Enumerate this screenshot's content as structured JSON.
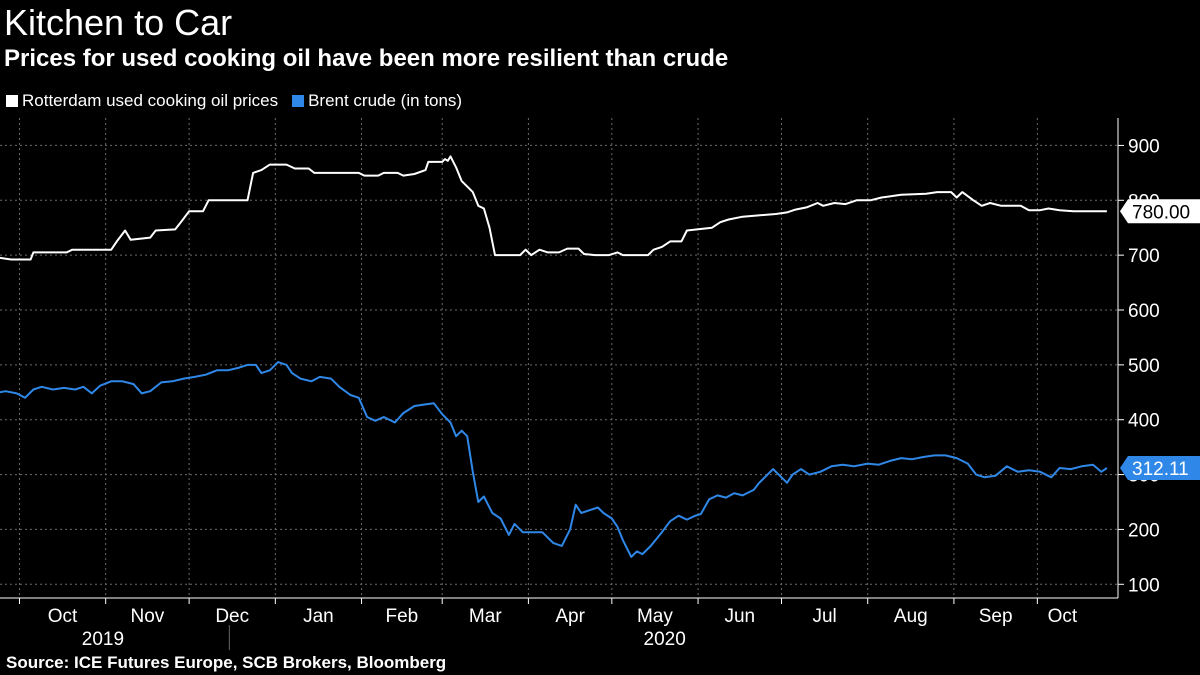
{
  "chart_data": {
    "type": "line",
    "title": "Kitchen to Car",
    "subtitle": "Prices for used cooking oil have been more resilient than crude",
    "source": "Source: ICE Futures Europe, SCB Brokers, Bloomberg",
    "ylim": [
      75,
      950
    ],
    "yticks": [
      100,
      200,
      300,
      400,
      500,
      600,
      700,
      800,
      900
    ],
    "grid": true,
    "legend_position": "top-left",
    "month_ticks": [
      {
        "label": "Oct",
        "date": "2019-10-01"
      },
      {
        "label": "Nov",
        "date": "2019-11-01"
      },
      {
        "label": "Dec",
        "date": "2019-12-01"
      },
      {
        "label": "Jan",
        "date": "2020-01-01"
      },
      {
        "label": "Feb",
        "date": "2020-02-01"
      },
      {
        "label": "Mar",
        "date": "2020-03-01"
      },
      {
        "label": "Apr",
        "date": "2020-04-01"
      },
      {
        "label": "May",
        "date": "2020-05-01"
      },
      {
        "label": "Jun",
        "date": "2020-06-01"
      },
      {
        "label": "Jul",
        "date": "2020-07-01"
      },
      {
        "label": "Aug",
        "date": "2020-08-01"
      },
      {
        "label": "Sep",
        "date": "2020-09-01"
      },
      {
        "label": "Oct",
        "date": "2020-10-01"
      }
    ],
    "year_labels": [
      {
        "label": "2019",
        "date": "2019-10-31"
      },
      {
        "label": "2020",
        "date": "2020-05-20"
      }
    ],
    "series": [
      {
        "name": "Rotterdam used cooking oil prices",
        "color": "#ffffff",
        "last_value_label": "780.00",
        "points": [
          [
            "2019-09-24",
            695
          ],
          [
            "2019-09-28",
            692
          ],
          [
            "2019-10-05",
            692
          ],
          [
            "2019-10-06",
            705
          ],
          [
            "2019-10-18",
            705
          ],
          [
            "2019-10-20",
            710
          ],
          [
            "2019-11-03",
            710
          ],
          [
            "2019-11-05",
            725
          ],
          [
            "2019-11-08",
            745
          ],
          [
            "2019-11-10",
            728
          ],
          [
            "2019-11-17",
            732
          ],
          [
            "2019-11-19",
            745
          ],
          [
            "2019-11-26",
            747
          ],
          [
            "2019-11-28",
            760
          ],
          [
            "2019-12-01",
            780
          ],
          [
            "2019-12-06",
            780
          ],
          [
            "2019-12-08",
            800
          ],
          [
            "2019-12-22",
            800
          ],
          [
            "2019-12-24",
            850
          ],
          [
            "2019-12-27",
            855
          ],
          [
            "2019-12-30",
            865
          ],
          [
            "2020-01-05",
            865
          ],
          [
            "2020-01-08",
            858
          ],
          [
            "2020-01-13",
            858
          ],
          [
            "2020-01-15",
            850
          ],
          [
            "2020-01-31",
            850
          ],
          [
            "2020-02-02",
            845
          ],
          [
            "2020-02-07",
            845
          ],
          [
            "2020-02-09",
            850
          ],
          [
            "2020-02-14",
            850
          ],
          [
            "2020-02-16",
            845
          ],
          [
            "2020-02-20",
            848
          ],
          [
            "2020-02-24",
            855
          ],
          [
            "2020-02-25",
            870
          ],
          [
            "2020-03-01",
            870
          ],
          [
            "2020-03-02",
            875
          ],
          [
            "2020-03-03",
            872
          ],
          [
            "2020-03-04",
            880
          ],
          [
            "2020-03-06",
            860
          ],
          [
            "2020-03-08",
            835
          ],
          [
            "2020-03-12",
            815
          ],
          [
            "2020-03-14",
            790
          ],
          [
            "2020-03-16",
            785
          ],
          [
            "2020-03-18",
            750
          ],
          [
            "2020-03-20",
            700
          ],
          [
            "2020-03-29",
            700
          ],
          [
            "2020-03-31",
            710
          ],
          [
            "2020-04-02",
            700
          ],
          [
            "2020-04-05",
            710
          ],
          [
            "2020-04-08",
            705
          ],
          [
            "2020-04-12",
            705
          ],
          [
            "2020-04-15",
            712
          ],
          [
            "2020-04-19",
            712
          ],
          [
            "2020-04-21",
            702
          ],
          [
            "2020-04-25",
            700
          ],
          [
            "2020-04-30",
            700
          ],
          [
            "2020-05-03",
            705
          ],
          [
            "2020-05-05",
            700
          ],
          [
            "2020-05-14",
            700
          ],
          [
            "2020-05-16",
            710
          ],
          [
            "2020-05-19",
            715
          ],
          [
            "2020-05-22",
            725
          ],
          [
            "2020-05-26",
            725
          ],
          [
            "2020-05-28",
            745
          ],
          [
            "2020-06-06",
            750
          ],
          [
            "2020-06-09",
            760
          ],
          [
            "2020-06-12",
            765
          ],
          [
            "2020-06-17",
            770
          ],
          [
            "2020-06-29",
            775
          ],
          [
            "2020-07-03",
            778
          ],
          [
            "2020-07-06",
            783
          ],
          [
            "2020-07-10",
            787
          ],
          [
            "2020-07-14",
            795
          ],
          [
            "2020-07-16",
            790
          ],
          [
            "2020-07-20",
            795
          ],
          [
            "2020-07-24",
            793
          ],
          [
            "2020-07-28",
            800
          ],
          [
            "2020-08-02",
            800
          ],
          [
            "2020-08-06",
            805
          ],
          [
            "2020-08-13",
            810
          ],
          [
            "2020-08-22",
            812
          ],
          [
            "2020-08-26",
            815
          ],
          [
            "2020-08-31",
            815
          ],
          [
            "2020-09-02",
            805
          ],
          [
            "2020-09-04",
            815
          ],
          [
            "2020-09-08",
            800
          ],
          [
            "2020-09-11",
            790
          ],
          [
            "2020-09-14",
            795
          ],
          [
            "2020-09-18",
            790
          ],
          [
            "2020-09-25",
            790
          ],
          [
            "2020-09-28",
            782
          ],
          [
            "2020-10-02",
            782
          ],
          [
            "2020-10-05",
            785
          ],
          [
            "2020-10-09",
            782
          ],
          [
            "2020-10-14",
            780
          ],
          [
            "2020-10-26",
            780
          ]
        ]
      },
      {
        "name": "Brent crude (in tons)",
        "color": "#2f88e8",
        "last_value_label": "312.11",
        "points": [
          [
            "2019-09-24",
            450
          ],
          [
            "2019-09-26",
            452
          ],
          [
            "2019-09-30",
            448
          ],
          [
            "2019-10-03",
            440
          ],
          [
            "2019-10-06",
            455
          ],
          [
            "2019-10-09",
            460
          ],
          [
            "2019-10-13",
            455
          ],
          [
            "2019-10-17",
            458
          ],
          [
            "2019-10-21",
            455
          ],
          [
            "2019-10-24",
            460
          ],
          [
            "2019-10-27",
            448
          ],
          [
            "2019-10-30",
            462
          ],
          [
            "2019-11-03",
            470
          ],
          [
            "2019-11-07",
            470
          ],
          [
            "2019-11-11",
            465
          ],
          [
            "2019-11-14",
            448
          ],
          [
            "2019-11-17",
            452
          ],
          [
            "2019-11-21",
            468
          ],
          [
            "2019-11-25",
            470
          ],
          [
            "2019-11-29",
            475
          ],
          [
            "2019-12-03",
            478
          ],
          [
            "2019-12-07",
            482
          ],
          [
            "2019-12-11",
            490
          ],
          [
            "2019-12-15",
            490
          ],
          [
            "2019-12-19",
            495
          ],
          [
            "2019-12-22",
            500
          ],
          [
            "2019-12-25",
            500
          ],
          [
            "2019-12-27",
            485
          ],
          [
            "2019-12-30",
            490
          ],
          [
            "2020-01-02",
            505
          ],
          [
            "2020-01-05",
            500
          ],
          [
            "2020-01-07",
            485
          ],
          [
            "2020-01-10",
            475
          ],
          [
            "2020-01-14",
            470
          ],
          [
            "2020-01-17",
            478
          ],
          [
            "2020-01-21",
            475
          ],
          [
            "2020-01-24",
            460
          ],
          [
            "2020-01-28",
            445
          ],
          [
            "2020-01-31",
            440
          ],
          [
            "2020-02-03",
            405
          ],
          [
            "2020-02-06",
            398
          ],
          [
            "2020-02-09",
            405
          ],
          [
            "2020-02-13",
            395
          ],
          [
            "2020-02-16",
            412
          ],
          [
            "2020-02-20",
            425
          ],
          [
            "2020-02-24",
            428
          ],
          [
            "2020-02-27",
            430
          ],
          [
            "2020-03-01",
            410
          ],
          [
            "2020-03-04",
            395
          ],
          [
            "2020-03-06",
            370
          ],
          [
            "2020-03-08",
            380
          ],
          [
            "2020-03-10",
            370
          ],
          [
            "2020-03-12",
            305
          ],
          [
            "2020-03-14",
            250
          ],
          [
            "2020-03-16",
            260
          ],
          [
            "2020-03-19",
            230
          ],
          [
            "2020-03-22",
            220
          ],
          [
            "2020-03-25",
            190
          ],
          [
            "2020-03-27",
            210
          ],
          [
            "2020-03-30",
            195
          ],
          [
            "2020-04-03",
            195
          ],
          [
            "2020-04-06",
            195
          ],
          [
            "2020-04-10",
            175
          ],
          [
            "2020-04-13",
            170
          ],
          [
            "2020-04-16",
            200
          ],
          [
            "2020-04-18",
            245
          ],
          [
            "2020-04-20",
            230
          ],
          [
            "2020-04-23",
            235
          ],
          [
            "2020-04-26",
            240
          ],
          [
            "2020-04-28",
            230
          ],
          [
            "2020-05-01",
            220
          ],
          [
            "2020-05-03",
            205
          ],
          [
            "2020-05-05",
            180
          ],
          [
            "2020-05-08",
            150
          ],
          [
            "2020-05-10",
            160
          ],
          [
            "2020-05-12",
            155
          ],
          [
            "2020-05-15",
            170
          ],
          [
            "2020-05-19",
            195
          ],
          [
            "2020-05-22",
            215
          ],
          [
            "2020-05-25",
            225
          ],
          [
            "2020-05-28",
            218
          ],
          [
            "2020-05-31",
            225
          ],
          [
            "2020-06-02",
            228
          ],
          [
            "2020-06-05",
            255
          ],
          [
            "2020-06-08",
            262
          ],
          [
            "2020-06-11",
            258
          ],
          [
            "2020-06-14",
            266
          ],
          [
            "2020-06-17",
            262
          ],
          [
            "2020-06-21",
            272
          ],
          [
            "2020-06-23",
            285
          ],
          [
            "2020-06-25",
            295
          ],
          [
            "2020-06-28",
            310
          ],
          [
            "2020-07-01",
            295
          ],
          [
            "2020-07-03",
            285
          ],
          [
            "2020-07-05",
            300
          ],
          [
            "2020-07-08",
            310
          ],
          [
            "2020-07-11",
            300
          ],
          [
            "2020-07-15",
            305
          ],
          [
            "2020-07-19",
            315
          ],
          [
            "2020-07-23",
            318
          ],
          [
            "2020-07-27",
            315
          ],
          [
            "2020-08-01",
            320
          ],
          [
            "2020-08-05",
            318
          ],
          [
            "2020-08-09",
            325
          ],
          [
            "2020-08-13",
            330
          ],
          [
            "2020-08-17",
            328
          ],
          [
            "2020-08-21",
            332
          ],
          [
            "2020-08-25",
            335
          ],
          [
            "2020-08-29",
            335
          ],
          [
            "2020-09-02",
            330
          ],
          [
            "2020-09-06",
            320
          ],
          [
            "2020-09-09",
            300
          ],
          [
            "2020-09-12",
            295
          ],
          [
            "2020-09-16",
            298
          ],
          [
            "2020-09-20",
            315
          ],
          [
            "2020-09-24",
            305
          ],
          [
            "2020-09-28",
            308
          ],
          [
            "2020-10-02",
            305
          ],
          [
            "2020-10-06",
            295
          ],
          [
            "2020-10-09",
            312
          ],
          [
            "2020-10-13",
            310
          ],
          [
            "2020-10-17",
            315
          ],
          [
            "2020-10-21",
            318
          ],
          [
            "2020-10-24",
            305
          ],
          [
            "2020-10-26",
            312
          ]
        ]
      }
    ]
  }
}
